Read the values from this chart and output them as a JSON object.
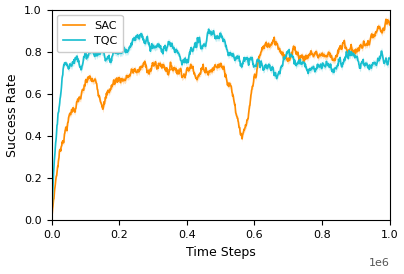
{
  "title": "",
  "xlabel": "Time Steps",
  "ylabel": "Success Rate",
  "xlim": [
    0,
    1.0
  ],
  "ylim": [
    0.0,
    1.0
  ],
  "yticks": [
    0.0,
    0.2,
    0.4,
    0.6,
    0.8,
    1.0
  ],
  "xticks": [
    0.0,
    0.2,
    0.4,
    0.6,
    0.8,
    1.0
  ],
  "sac_color": "#FF8C00",
  "tqc_color": "#17BECF",
  "legend_labels": [
    "SAC",
    "TQC"
  ],
  "figsize": [
    4.04,
    2.74
  ],
  "dpi": 100
}
